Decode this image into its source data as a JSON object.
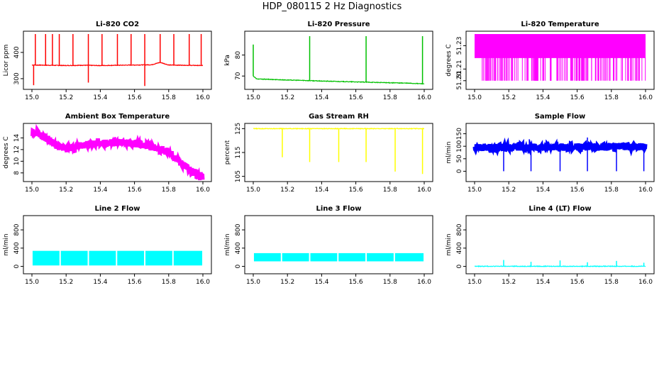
{
  "figure": {
    "title": "HDP_080115  2 Hz Diagnostics"
  },
  "chart_data": [
    {
      "type": "line",
      "id": "co2",
      "title": "Li-820 CO2",
      "xlabel": "",
      "ylabel": "Licor ppm",
      "xlim": [
        15.0,
        16.0
      ],
      "ylim": [
        270,
        470
      ],
      "xticks": [
        15.0,
        15.2,
        15.4,
        15.6,
        15.8,
        16.0
      ],
      "xtick_labels": [
        "15.0",
        "15.2",
        "15.4",
        "15.6",
        "15.8",
        "16.0"
      ],
      "yticks": [
        300,
        400
      ],
      "ytick_labels": [
        "300",
        "400"
      ],
      "color": "#ff0000",
      "style": "line",
      "series": [
        {
          "name": "CO2",
          "x": [
            15.0,
            15.1,
            15.2,
            15.3,
            15.4,
            15.5,
            15.6,
            15.7,
            15.75,
            15.8,
            15.9,
            16.0
          ],
          "values": [
            352,
            351,
            350,
            351,
            350,
            351,
            352,
            353,
            362,
            352,
            351,
            350
          ]
        }
      ],
      "spikes": [
        {
          "x": 15.02,
          "peak": 470
        },
        {
          "x": 15.08,
          "peak": 470
        },
        {
          "x": 15.12,
          "peak": 470
        },
        {
          "x": 15.16,
          "peak": 470
        },
        {
          "x": 15.24,
          "peak": 470
        },
        {
          "x": 15.33,
          "peak": 470
        },
        {
          "x": 15.41,
          "peak": 470
        },
        {
          "x": 15.5,
          "peak": 470
        },
        {
          "x": 15.58,
          "peak": 470
        },
        {
          "x": 15.66,
          "peak": 470
        },
        {
          "x": 15.75,
          "peak": 470
        },
        {
          "x": 15.83,
          "peak": 470
        },
        {
          "x": 15.92,
          "peak": 470
        },
        {
          "x": 15.99,
          "peak": 470
        },
        {
          "x": 15.01,
          "peak": 275
        },
        {
          "x": 15.33,
          "peak": 285
        },
        {
          "x": 15.66,
          "peak": 272
        }
      ]
    },
    {
      "type": "line",
      "id": "pressure",
      "title": "Li-820 Pressure",
      "xlabel": "",
      "ylabel": "kPa",
      "xlim": [
        15.0,
        16.0
      ],
      "ylim": [
        65,
        90
      ],
      "xticks": [
        15.0,
        15.2,
        15.4,
        15.6,
        15.8,
        16.0
      ],
      "xtick_labels": [
        "15.0",
        "15.2",
        "15.4",
        "15.6",
        "15.8",
        "16.0"
      ],
      "yticks": [
        70,
        80
      ],
      "ytick_labels": [
        "70",
        "80"
      ],
      "color": "#00c000",
      "style": "line",
      "series": [
        {
          "name": "Pressure",
          "x": [
            15.0,
            15.02,
            15.1,
            15.2,
            15.3,
            15.4,
            15.5,
            15.6,
            15.7,
            15.8,
            15.9,
            16.0
          ],
          "values": [
            70.0,
            68.6,
            68.4,
            68.1,
            67.9,
            67.6,
            67.4,
            67.2,
            67.0,
            66.8,
            66.6,
            66.3
          ]
        }
      ],
      "spikes": [
        {
          "x": 15.0,
          "peak": 85
        },
        {
          "x": 15.33,
          "peak": 89
        },
        {
          "x": 15.66,
          "peak": 89
        },
        {
          "x": 15.99,
          "peak": 89
        }
      ]
    },
    {
      "type": "line",
      "id": "temperature",
      "title": "Li-820 Temperature",
      "xlabel": "",
      "ylabel": "degrees C",
      "xlim": [
        15.0,
        16.0
      ],
      "ylim": [
        51.195,
        51.24
      ],
      "xticks": [
        15.0,
        15.2,
        15.4,
        15.6,
        15.8,
        16.0
      ],
      "xtick_labels": [
        "15.0",
        "15.2",
        "15.4",
        "15.6",
        "15.8",
        "16.0"
      ],
      "yticks": [
        51.2,
        51.21,
        51.23
      ],
      "ytick_labels": [
        "51.20",
        "51.21",
        "51.23"
      ],
      "color": "#ff00ff",
      "style": "quantized",
      "series": [
        {
          "name": "Temperature",
          "x": [
            15.0,
            16.0
          ],
          "levels": [
            51.2,
            51.22,
            51.24
          ]
        }
      ]
    },
    {
      "type": "line",
      "id": "ambient",
      "title": "Ambient Box Temperature",
      "xlabel": "",
      "ylabel": "degrees C",
      "xlim": [
        15.0,
        16.0
      ],
      "ylim": [
        7,
        16
      ],
      "xticks": [
        15.0,
        15.2,
        15.4,
        15.6,
        15.8,
        16.0
      ],
      "xtick_labels": [
        "15.0",
        "15.2",
        "15.4",
        "15.6",
        "15.8",
        "16.0"
      ],
      "yticks": [
        8,
        10,
        12,
        14
      ],
      "ytick_labels": [
        "8",
        "10",
        "12",
        "14"
      ],
      "color": "#ff00ff",
      "style": "band",
      "band": 0.8,
      "series": [
        {
          "name": "Ambient",
          "x": [
            15.0,
            15.05,
            15.1,
            15.15,
            15.2,
            15.25,
            15.3,
            15.35,
            15.4,
            15.45,
            15.5,
            15.55,
            15.6,
            15.65,
            15.7,
            15.75,
            15.8,
            15.85,
            15.9,
            15.95,
            16.0
          ],
          "values": [
            15.0,
            14.5,
            13.6,
            12.6,
            12.2,
            12.3,
            12.8,
            13.0,
            13.1,
            13.1,
            13.2,
            13.3,
            13.0,
            12.8,
            12.5,
            12.1,
            11.6,
            10.3,
            9.0,
            7.9,
            7.4
          ]
        }
      ]
    },
    {
      "type": "line",
      "id": "rh",
      "title": "Gas Stream RH",
      "xlabel": "",
      "ylabel": "percent",
      "xlim": [
        15.0,
        16.0
      ],
      "ylim": [
        104,
        126
      ],
      "xticks": [
        15.0,
        15.2,
        15.4,
        15.6,
        15.8,
        16.0
      ],
      "xtick_labels": [
        "15.0",
        "15.2",
        "15.4",
        "15.6",
        "15.8",
        "16.0"
      ],
      "yticks": [
        105,
        115,
        125
      ],
      "ytick_labels": [
        "105",
        "115",
        "125"
      ],
      "color": "#ffff00",
      "style": "line",
      "series": [
        {
          "name": "RH",
          "x": [
            15.0,
            16.0
          ],
          "values": [
            125,
            125
          ]
        }
      ],
      "spikes": [
        {
          "x": 15.17,
          "peak": 113
        },
        {
          "x": 15.33,
          "peak": 111
        },
        {
          "x": 15.5,
          "peak": 111
        },
        {
          "x": 15.66,
          "peak": 111
        },
        {
          "x": 15.83,
          "peak": 107
        },
        {
          "x": 15.99,
          "peak": 106
        }
      ]
    },
    {
      "type": "line",
      "id": "sampleflow",
      "title": "Sample Flow",
      "xlabel": "",
      "ylabel": "ml/min",
      "xlim": [
        15.0,
        16.0
      ],
      "ylim": [
        -30,
        180
      ],
      "xticks": [
        15.0,
        15.2,
        15.4,
        15.6,
        15.8,
        16.0
      ],
      "xtick_labels": [
        "15.0",
        "15.2",
        "15.4",
        "15.6",
        "15.8",
        "16.0"
      ],
      "yticks": [
        0,
        50,
        100,
        150
      ],
      "ytick_labels": [
        "0",
        "50",
        "100",
        "150"
      ],
      "color": "#0000ff",
      "style": "band",
      "band": 18,
      "series": [
        {
          "name": "Sample Flow",
          "x": [
            15.0,
            16.0
          ],
          "values": [
            95,
            98
          ]
        }
      ],
      "spikes": [
        {
          "x": 15.17,
          "peak": 0
        },
        {
          "x": 15.33,
          "peak": 0
        },
        {
          "x": 15.5,
          "peak": 0
        },
        {
          "x": 15.66,
          "peak": 0
        },
        {
          "x": 15.83,
          "peak": 0
        },
        {
          "x": 15.99,
          "peak": 0
        },
        {
          "x": 15.32,
          "peak": 128
        },
        {
          "x": 15.66,
          "peak": 135
        }
      ]
    },
    {
      "type": "line",
      "id": "line2",
      "title": "Line 2 Flow",
      "xlabel": "",
      "ylabel": "ml/min",
      "xlim": [
        15.0,
        16.0
      ],
      "ylim": [
        -100,
        1050
      ],
      "xticks": [
        15.0,
        15.2,
        15.4,
        15.6,
        15.8,
        16.0
      ],
      "xtick_labels": [
        "15.0",
        "15.2",
        "15.4",
        "15.6",
        "15.8",
        "16.0"
      ],
      "yticks": [
        0,
        400,
        800
      ],
      "ytick_labels": [
        "0",
        "400",
        "800"
      ],
      "color": "#00ffff",
      "style": "blocks",
      "series": [
        {
          "name": "Line 2",
          "x": [
            15.0,
            16.0
          ],
          "low": 20,
          "high": 340
        }
      ],
      "gaps": [
        15.165,
        15.33,
        15.495,
        15.66,
        15.825
      ]
    },
    {
      "type": "line",
      "id": "line3",
      "title": "Line 3 Flow",
      "xlabel": "",
      "ylabel": "ml/min",
      "xlim": [
        15.0,
        16.0
      ],
      "ylim": [
        -100,
        1050
      ],
      "xticks": [
        15.0,
        15.2,
        15.4,
        15.6,
        15.8,
        16.0
      ],
      "xtick_labels": [
        "15.0",
        "15.2",
        "15.4",
        "15.6",
        "15.8",
        "16.0"
      ],
      "yticks": [
        0,
        400,
        800
      ],
      "ytick_labels": [
        "0",
        "400",
        "800"
      ],
      "color": "#00ffff",
      "style": "blocks",
      "series": [
        {
          "name": "Line 3",
          "x": [
            15.0,
            16.0
          ],
          "low": 110,
          "high": 290
        }
      ],
      "gaps": [
        15.165,
        15.33,
        15.495,
        15.66,
        15.825
      ]
    },
    {
      "type": "line",
      "id": "line4",
      "title": "Line 4 (LT) Flow",
      "xlabel": "",
      "ylabel": "ml/min",
      "xlim": [
        15.0,
        16.0
      ],
      "ylim": [
        -100,
        1050
      ],
      "xticks": [
        15.0,
        15.2,
        15.4,
        15.6,
        15.8,
        16.0
      ],
      "xtick_labels": [
        "15.0",
        "15.2",
        "15.4",
        "15.6",
        "15.8",
        "16.0"
      ],
      "yticks": [
        0,
        400,
        800
      ],
      "ytick_labels": [
        "0",
        "400",
        "800"
      ],
      "color": "#00ffff",
      "style": "line",
      "series": [
        {
          "name": "Line 4",
          "x": [
            15.0,
            16.0
          ],
          "values": [
            2,
            2
          ]
        }
      ],
      "spikes": [
        {
          "x": 15.17,
          "peak": 140
        },
        {
          "x": 15.33,
          "peak": 100
        },
        {
          "x": 15.5,
          "peak": 130
        },
        {
          "x": 15.66,
          "peak": 90
        },
        {
          "x": 15.83,
          "peak": 120
        },
        {
          "x": 15.99,
          "peak": 80
        }
      ]
    }
  ]
}
